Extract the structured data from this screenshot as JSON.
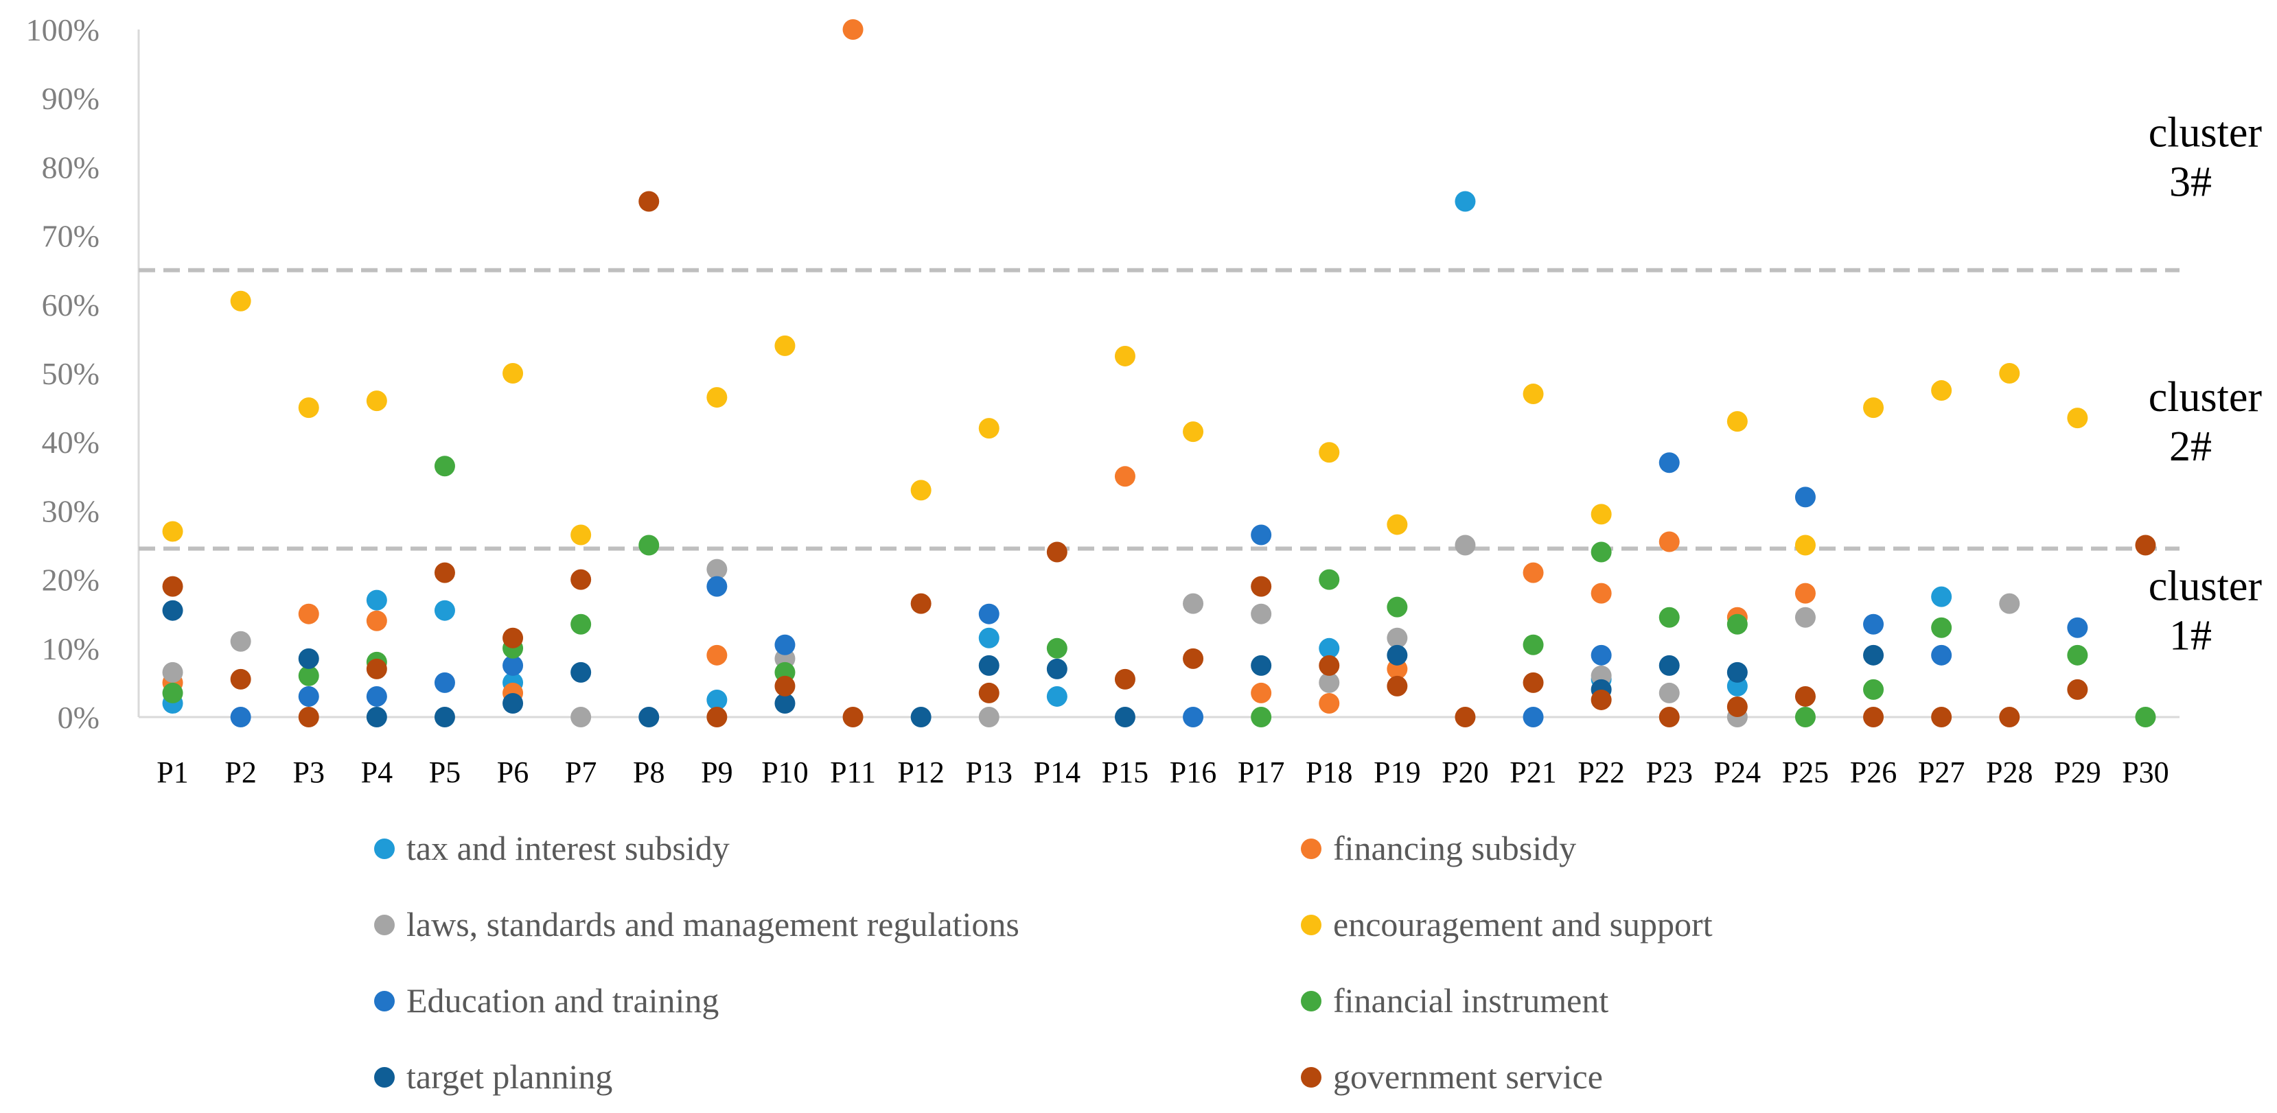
{
  "chart_data": {
    "type": "scatter",
    "title": "",
    "xlabel": "",
    "ylabel": "",
    "ylim": [
      0,
      100
    ],
    "y_tick_labels": [
      "0%",
      "10%",
      "20%",
      "30%",
      "40%",
      "50%",
      "60%",
      "70%",
      "80%",
      "90%",
      "100%"
    ],
    "categories": [
      "P1",
      "P2",
      "P3",
      "P4",
      "P5",
      "P6",
      "P7",
      "P8",
      "P9",
      "P10",
      "P11",
      "P12",
      "P13",
      "P14",
      "P15",
      "P16",
      "P17",
      "P18",
      "P19",
      "P20",
      "P21",
      "P22",
      "P23",
      "P24",
      "P25",
      "P26",
      "P27",
      "P28",
      "P29",
      "P30"
    ],
    "thresholds": [
      {
        "value": 24.5,
        "style": "dashed",
        "color": "#bfbfbf"
      },
      {
        "value": 65,
        "style": "dashed",
        "color": "#bfbfbf"
      }
    ],
    "cluster_labels": [
      {
        "line1": "cluster",
        "line2": "3#",
        "y_center": 82
      },
      {
        "line1": "cluster",
        "line2": "2#",
        "y_center": 43.5
      },
      {
        "line1": "cluster",
        "line2": "1#",
        "y_center": 16
      }
    ],
    "series": [
      {
        "name": "tax and interest subsidy",
        "color": "#1f9bd7",
        "values": [
          2,
          null,
          null,
          17,
          15.5,
          5,
          null,
          null,
          2.5,
          null,
          null,
          null,
          11.5,
          3,
          null,
          null,
          null,
          10,
          null,
          75,
          null,
          5.5,
          null,
          4.5,
          null,
          null,
          17.5,
          null,
          null,
          null
        ]
      },
      {
        "name": "financing subsidy",
        "color": "#f47a2a",
        "values": [
          5,
          null,
          15,
          14,
          null,
          3.5,
          null,
          null,
          9,
          null,
          100,
          null,
          null,
          null,
          35,
          null,
          3.5,
          2,
          7,
          null,
          21,
          18,
          25.5,
          14.5,
          18,
          null,
          null,
          null,
          null,
          null
        ]
      },
      {
        "name": "laws, standards and management regulations",
        "color": "#a5a5a5",
        "values": [
          6.5,
          11,
          null,
          null,
          null,
          null,
          0,
          null,
          21.5,
          8.5,
          null,
          null,
          0,
          null,
          null,
          16.5,
          15,
          5,
          11.5,
          25,
          null,
          6,
          3.5,
          0,
          14.5,
          null,
          null,
          16.5,
          null,
          null
        ]
      },
      {
        "name": "encouragement and support",
        "color": "#fbbe10",
        "values": [
          27,
          60.5,
          45,
          46,
          null,
          50,
          26.5,
          null,
          46.5,
          54,
          null,
          33,
          42,
          null,
          52.5,
          41.5,
          null,
          38.5,
          28,
          null,
          47,
          29.5,
          null,
          43,
          25,
          45,
          47.5,
          50,
          43.5,
          null
        ]
      },
      {
        "name": "Education and training",
        "color": "#2175c8",
        "values": [
          null,
          0,
          3,
          3,
          5,
          7.5,
          null,
          null,
          19,
          10.5,
          null,
          null,
          15,
          null,
          null,
          0,
          26.5,
          null,
          null,
          null,
          0,
          9,
          37,
          null,
          32,
          13.5,
          9,
          null,
          13,
          null
        ]
      },
      {
        "name": "financial instrument",
        "color": "#43a93f",
        "values": [
          3.5,
          null,
          6,
          8,
          36.5,
          10,
          13.5,
          25,
          null,
          6.5,
          null,
          null,
          null,
          10,
          null,
          null,
          0,
          20,
          16,
          null,
          10.5,
          24,
          14.5,
          13.5,
          0,
          4,
          13,
          null,
          9,
          0
        ]
      },
      {
        "name": "target planning",
        "color": "#0f5e96",
        "values": [
          15.5,
          null,
          8.5,
          0,
          0,
          2,
          6.5,
          0,
          null,
          2,
          null,
          0,
          7.5,
          7,
          0,
          null,
          7.5,
          null,
          9,
          null,
          null,
          4,
          7.5,
          6.5,
          null,
          9,
          null,
          null,
          null,
          null
        ]
      },
      {
        "name": "government service",
        "color": "#b5480c",
        "values": [
          19,
          5.5,
          0,
          7,
          21,
          11.5,
          20,
          75,
          0,
          4.5,
          0,
          16.5,
          3.5,
          24,
          5.5,
          8.5,
          19,
          7.5,
          4.5,
          0,
          5,
          2.5,
          0,
          1.5,
          3,
          0,
          0,
          0,
          4,
          25
        ]
      }
    ],
    "legend_position": "bottom"
  }
}
